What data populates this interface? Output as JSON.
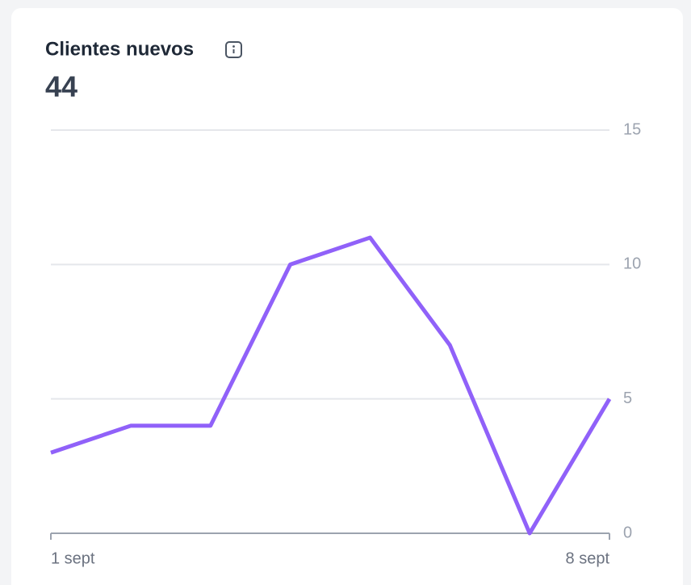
{
  "chart_data": {
    "type": "line",
    "title": "Clientes nuevos",
    "total": 44,
    "categories": [
      "1 sept",
      null,
      null,
      null,
      null,
      null,
      null,
      "8 sept"
    ],
    "values": [
      3,
      4,
      4,
      10,
      11,
      7,
      0,
      5
    ],
    "color": "#9061f9",
    "ylim": [
      0,
      15
    ],
    "yticks": [
      0,
      5,
      10,
      15
    ],
    "grid": true
  }
}
